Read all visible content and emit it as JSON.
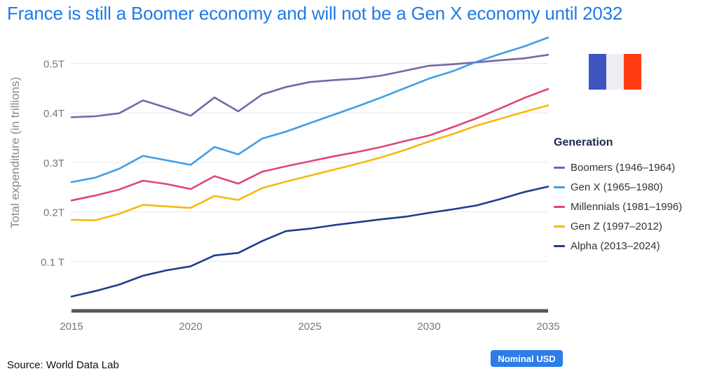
{
  "title": "France is still a Boomer economy and will not be a Gen X economy until 2032",
  "source": "Source: World Data Lab",
  "unit_badge": "Nominal USD",
  "flag": {
    "name": "France flag",
    "colors": [
      "#3d55c0",
      "#eeeef2",
      "#fe3d12"
    ]
  },
  "chart_data": {
    "type": "line",
    "title": "France is still a Boomer economy and will not be a Gen X economy until 2032",
    "ylabel": "Total expenditure (in trillions)",
    "xlabel": "",
    "xlim": [
      2015,
      2035
    ],
    "ylim": [
      0,
      0.55
    ],
    "x_ticks": [
      "2015",
      "2020",
      "2025",
      "2030",
      "2035"
    ],
    "x_tick_values": [
      2015,
      2020,
      2025,
      2030,
      2035
    ],
    "y_ticks": [
      "0.1 T",
      "0.2T",
      "0.3T",
      "0.4T",
      "0.5T"
    ],
    "y_tick_values": [
      0.1,
      0.2,
      0.3,
      0.4,
      0.5
    ],
    "grid": true,
    "legend_title": "Generation",
    "legend_position": "right",
    "x": [
      2015,
      2016,
      2017,
      2018,
      2019,
      2020,
      2021,
      2022,
      2023,
      2024,
      2025,
      2026,
      2027,
      2028,
      2029,
      2030,
      2031,
      2032,
      2033,
      2034,
      2035
    ],
    "series": [
      {
        "name": "Boomers (1946–1964)",
        "color": "#7b63a8",
        "values": [
          0.391,
          0.393,
          0.399,
          0.425,
          0.41,
          0.394,
          0.431,
          0.403,
          0.437,
          0.452,
          0.462,
          0.466,
          0.469,
          0.475,
          0.485,
          0.495,
          0.498,
          0.502,
          0.506,
          0.51,
          0.517
        ]
      },
      {
        "name": "Gen X (1965–1980)",
        "color": "#3e9ee7",
        "values": [
          0.26,
          0.269,
          0.287,
          0.313,
          0.304,
          0.295,
          0.331,
          0.316,
          0.348,
          0.362,
          0.379,
          0.396,
          0.413,
          0.431,
          0.45,
          0.469,
          0.484,
          0.503,
          0.519,
          0.534,
          0.552
        ]
      },
      {
        "name": "Millennials (1981–1996)",
        "color": "#e0457c",
        "values": [
          0.223,
          0.233,
          0.245,
          0.263,
          0.256,
          0.246,
          0.272,
          0.257,
          0.281,
          0.292,
          0.302,
          0.312,
          0.321,
          0.331,
          0.343,
          0.354,
          0.371,
          0.389,
          0.409,
          0.43,
          0.448
        ]
      },
      {
        "name": "Gen Z (1997–2012)",
        "color": "#f7b90c",
        "values": [
          0.184,
          0.183,
          0.196,
          0.214,
          0.211,
          0.208,
          0.232,
          0.224,
          0.248,
          0.261,
          0.273,
          0.285,
          0.297,
          0.31,
          0.325,
          0.342,
          0.357,
          0.374,
          0.388,
          0.402,
          0.415
        ]
      },
      {
        "name": "Alpha (2013–2024)",
        "color": "#1f3d8c",
        "values": [
          0.029,
          0.04,
          0.053,
          0.071,
          0.082,
          0.09,
          0.112,
          0.117,
          0.141,
          0.161,
          0.166,
          0.173,
          0.179,
          0.185,
          0.19,
          0.198,
          0.205,
          0.213,
          0.226,
          0.24,
          0.251
        ]
      }
    ]
  }
}
